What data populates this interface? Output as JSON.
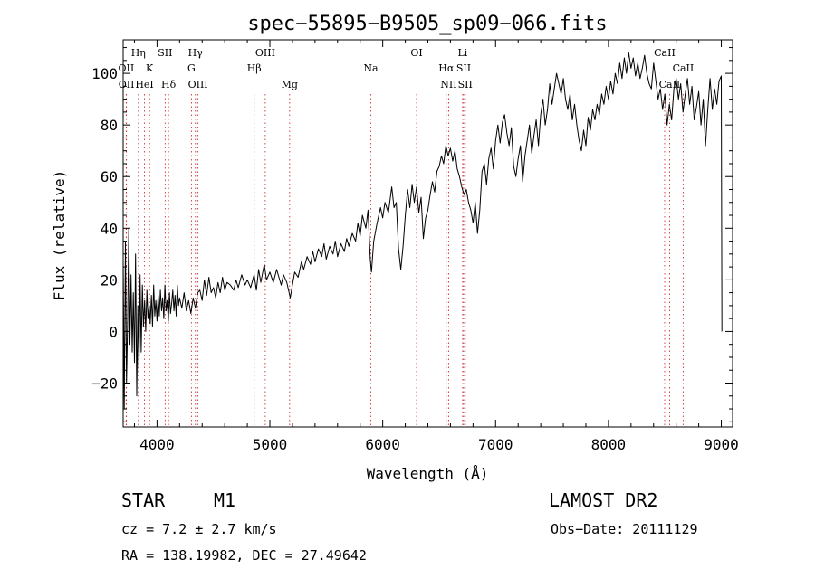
{
  "chart_data": {
    "type": "line",
    "title": "spec−55895−B9505_sp09−066.fits",
    "xlabel": "Wavelength (Å)",
    "ylabel": "Flux (relative)",
    "xlim": [
      3700,
      9100
    ],
    "ylim": [
      -37,
      113
    ],
    "xticks": [
      4000,
      5000,
      6000,
      7000,
      8000,
      9000
    ],
    "yticks": [
      -20,
      0,
      20,
      40,
      60,
      80,
      100
    ],
    "grid": false,
    "series": [
      {
        "name": "",
        "points": [
          [
            3700,
            28
          ],
          [
            3710,
            -30
          ],
          [
            3720,
            35
          ],
          [
            3730,
            -20
          ],
          [
            3740,
            5
          ],
          [
            3750,
            40
          ],
          [
            3760,
            -5
          ],
          [
            3770,
            22
          ],
          [
            3780,
            -8
          ],
          [
            3790,
            15
          ],
          [
            3800,
            -12
          ],
          [
            3810,
            30
          ],
          [
            3820,
            -25
          ],
          [
            3830,
            10
          ],
          [
            3840,
            -15
          ],
          [
            3850,
            22
          ],
          [
            3860,
            -8
          ],
          [
            3870,
            18
          ],
          [
            3880,
            2
          ],
          [
            3890,
            12
          ],
          [
            3900,
            0
          ],
          [
            3910,
            16
          ],
          [
            3920,
            5
          ],
          [
            3930,
            10
          ],
          [
            3940,
            3
          ],
          [
            3950,
            14
          ],
          [
            3960,
            2
          ],
          [
            3970,
            18
          ],
          [
            3980,
            6
          ],
          [
            3990,
            12
          ],
          [
            4000,
            4
          ],
          [
            4010,
            14
          ],
          [
            4020,
            6
          ],
          [
            4030,
            16
          ],
          [
            4040,
            8
          ],
          [
            4050,
            13
          ],
          [
            4060,
            5
          ],
          [
            4070,
            18
          ],
          [
            4080,
            8
          ],
          [
            4090,
            12
          ],
          [
            4100,
            4
          ],
          [
            4110,
            15
          ],
          [
            4120,
            7
          ],
          [
            4130,
            11
          ],
          [
            4140,
            16
          ],
          [
            4150,
            8
          ],
          [
            4160,
            14
          ],
          [
            4170,
            6
          ],
          [
            4180,
            18
          ],
          [
            4190,
            10
          ],
          [
            4200,
            13
          ],
          [
            4220,
            9
          ],
          [
            4240,
            15
          ],
          [
            4260,
            8
          ],
          [
            4280,
            12
          ],
          [
            4300,
            7
          ],
          [
            4320,
            13
          ],
          [
            4340,
            9
          ],
          [
            4360,
            15
          ],
          [
            4380,
            16
          ],
          [
            4400,
            12
          ],
          [
            4420,
            20
          ],
          [
            4440,
            14
          ],
          [
            4460,
            21
          ],
          [
            4480,
            15
          ],
          [
            4500,
            17
          ],
          [
            4520,
            13
          ],
          [
            4540,
            19
          ],
          [
            4560,
            15
          ],
          [
            4580,
            21
          ],
          [
            4600,
            16
          ],
          [
            4620,
            19
          ],
          [
            4650,
            18
          ],
          [
            4680,
            16
          ],
          [
            4700,
            20
          ],
          [
            4720,
            17
          ],
          [
            4750,
            22
          ],
          [
            4780,
            18
          ],
          [
            4800,
            20
          ],
          [
            4830,
            17
          ],
          [
            4860,
            22
          ],
          [
            4880,
            16
          ],
          [
            4900,
            24
          ],
          [
            4920,
            19
          ],
          [
            4950,
            26
          ],
          [
            4970,
            20
          ],
          [
            5000,
            23
          ],
          [
            5030,
            19
          ],
          [
            5060,
            24
          ],
          [
            5080,
            21
          ],
          [
            5100,
            18
          ],
          [
            5120,
            22
          ],
          [
            5150,
            19
          ],
          [
            5180,
            13
          ],
          [
            5200,
            18
          ],
          [
            5220,
            23
          ],
          [
            5250,
            21
          ],
          [
            5280,
            27
          ],
          [
            5300,
            24
          ],
          [
            5330,
            29
          ],
          [
            5360,
            26
          ],
          [
            5380,
            31
          ],
          [
            5400,
            27
          ],
          [
            5430,
            32
          ],
          [
            5460,
            29
          ],
          [
            5480,
            34
          ],
          [
            5500,
            28
          ],
          [
            5530,
            33
          ],
          [
            5560,
            30
          ],
          [
            5580,
            35
          ],
          [
            5600,
            29
          ],
          [
            5630,
            34
          ],
          [
            5660,
            31
          ],
          [
            5680,
            36
          ],
          [
            5700,
            33
          ],
          [
            5730,
            38
          ],
          [
            5760,
            35
          ],
          [
            5780,
            42
          ],
          [
            5800,
            37
          ],
          [
            5820,
            45
          ],
          [
            5850,
            40
          ],
          [
            5870,
            47
          ],
          [
            5890,
            28
          ],
          [
            5900,
            23
          ],
          [
            5920,
            35
          ],
          [
            5950,
            42
          ],
          [
            5980,
            48
          ],
          [
            6000,
            44
          ],
          [
            6020,
            50
          ],
          [
            6050,
            46
          ],
          [
            6080,
            56
          ],
          [
            6100,
            48
          ],
          [
            6120,
            50
          ],
          [
            6140,
            32
          ],
          [
            6160,
            24
          ],
          [
            6180,
            33
          ],
          [
            6200,
            45
          ],
          [
            6220,
            55
          ],
          [
            6240,
            48
          ],
          [
            6260,
            57
          ],
          [
            6280,
            50
          ],
          [
            6300,
            56
          ],
          [
            6320,
            46
          ],
          [
            6340,
            52
          ],
          [
            6360,
            36
          ],
          [
            6380,
            44
          ],
          [
            6400,
            47
          ],
          [
            6420,
            53
          ],
          [
            6440,
            58
          ],
          [
            6460,
            54
          ],
          [
            6480,
            62
          ],
          [
            6500,
            64
          ],
          [
            6520,
            68
          ],
          [
            6540,
            65
          ],
          [
            6560,
            72
          ],
          [
            6580,
            68
          ],
          [
            6600,
            71
          ],
          [
            6620,
            66
          ],
          [
            6640,
            70
          ],
          [
            6660,
            63
          ],
          [
            6680,
            60
          ],
          [
            6700,
            56
          ],
          [
            6720,
            53
          ],
          [
            6740,
            55
          ],
          [
            6760,
            50
          ],
          [
            6780,
            47
          ],
          [
            6800,
            42
          ],
          [
            6820,
            50
          ],
          [
            6840,
            38
          ],
          [
            6860,
            47
          ],
          [
            6880,
            62
          ],
          [
            6900,
            65
          ],
          [
            6920,
            57
          ],
          [
            6940,
            67
          ],
          [
            6960,
            71
          ],
          [
            6980,
            63
          ],
          [
            7000,
            74
          ],
          [
            7020,
            80
          ],
          [
            7040,
            73
          ],
          [
            7060,
            81
          ],
          [
            7080,
            84
          ],
          [
            7100,
            77
          ],
          [
            7120,
            72
          ],
          [
            7140,
            79
          ],
          [
            7160,
            64
          ],
          [
            7180,
            60
          ],
          [
            7200,
            67
          ],
          [
            7220,
            72
          ],
          [
            7240,
            58
          ],
          [
            7260,
            68
          ],
          [
            7280,
            74
          ],
          [
            7300,
            80
          ],
          [
            7320,
            69
          ],
          [
            7340,
            76
          ],
          [
            7360,
            82
          ],
          [
            7380,
            72
          ],
          [
            7400,
            84
          ],
          [
            7420,
            90
          ],
          [
            7440,
            80
          ],
          [
            7460,
            86
          ],
          [
            7480,
            96
          ],
          [
            7500,
            88
          ],
          [
            7520,
            94
          ],
          [
            7540,
            100
          ],
          [
            7560,
            96
          ],
          [
            7580,
            92
          ],
          [
            7600,
            98
          ],
          [
            7620,
            90
          ],
          [
            7640,
            86
          ],
          [
            7660,
            92
          ],
          [
            7680,
            82
          ],
          [
            7700,
            88
          ],
          [
            7720,
            80
          ],
          [
            7740,
            74
          ],
          [
            7760,
            70
          ],
          [
            7780,
            78
          ],
          [
            7800,
            72
          ],
          [
            7820,
            83
          ],
          [
            7840,
            78
          ],
          [
            7860,
            86
          ],
          [
            7880,
            82
          ],
          [
            7900,
            88
          ],
          [
            7920,
            84
          ],
          [
            7940,
            92
          ],
          [
            7960,
            88
          ],
          [
            7980,
            95
          ],
          [
            8000,
            90
          ],
          [
            8020,
            97
          ],
          [
            8040,
            92
          ],
          [
            8060,
            100
          ],
          [
            8080,
            96
          ],
          [
            8100,
            104
          ],
          [
            8120,
            98
          ],
          [
            8140,
            106
          ],
          [
            8160,
            100
          ],
          [
            8180,
            108
          ],
          [
            8200,
            102
          ],
          [
            8220,
            106
          ],
          [
            8240,
            99
          ],
          [
            8260,
            104
          ],
          [
            8280,
            98
          ],
          [
            8300,
            102
          ],
          [
            8320,
            107
          ],
          [
            8340,
            100
          ],
          [
            8360,
            96
          ],
          [
            8380,
            94
          ],
          [
            8400,
            104
          ],
          [
            8420,
            97
          ],
          [
            8440,
            90
          ],
          [
            8460,
            94
          ],
          [
            8480,
            86
          ],
          [
            8500,
            92
          ],
          [
            8520,
            80
          ],
          [
            8540,
            88
          ],
          [
            8560,
            82
          ],
          [
            8580,
            94
          ],
          [
            8600,
            98
          ],
          [
            8620,
            90
          ],
          [
            8640,
            96
          ],
          [
            8660,
            85
          ],
          [
            8680,
            92
          ],
          [
            8700,
            98
          ],
          [
            8720,
            88
          ],
          [
            8740,
            95
          ],
          [
            8760,
            82
          ],
          [
            8780,
            87
          ],
          [
            8800,
            93
          ],
          [
            8820,
            80
          ],
          [
            8840,
            90
          ],
          [
            8860,
            72
          ],
          [
            8880,
            86
          ],
          [
            8900,
            98
          ],
          [
            8920,
            86
          ],
          [
            8940,
            94
          ],
          [
            8960,
            88
          ],
          [
            8980,
            97
          ],
          [
            9000,
            99
          ],
          [
            9005,
            0
          ]
        ]
      }
    ],
    "line_markers": [
      {
        "label": "OII",
        "wavelength": 3727,
        "row": 1
      },
      {
        "label": "OII",
        "wavelength": 3729,
        "row": 2
      },
      {
        "label": "Hη",
        "wavelength": 3835,
        "row": 0
      },
      {
        "label": "HeI",
        "wavelength": 3889,
        "row": 2
      },
      {
        "label": "K",
        "wavelength": 3934,
        "row": 1
      },
      {
        "label": "SII",
        "wavelength": 4072,
        "row": 0
      },
      {
        "label": "Hδ",
        "wavelength": 4102,
        "row": 2
      },
      {
        "label": "Hγ",
        "wavelength": 4340,
        "row": 0
      },
      {
        "label": "G",
        "wavelength": 4305,
        "row": 1
      },
      {
        "label": "OIII",
        "wavelength": 4363,
        "row": 2
      },
      {
        "label": "Hβ",
        "wavelength": 4861,
        "row": 1
      },
      {
        "label": "OIII",
        "wavelength": 4959,
        "row": 0
      },
      {
        "label": "Mg",
        "wavelength": 5175,
        "row": 2
      },
      {
        "label": "Na",
        "wavelength": 5894,
        "row": 1
      },
      {
        "label": "OI",
        "wavelength": 6300,
        "row": 0
      },
      {
        "label": "Hα",
        "wavelength": 6563,
        "row": 1
      },
      {
        "label": "NII",
        "wavelength": 6584,
        "row": 2
      },
      {
        "label": "Li",
        "wavelength": 6708,
        "row": 0
      },
      {
        "label": "SII",
        "wavelength": 6717,
        "row": 1
      },
      {
        "label": "SII",
        "wavelength": 6731,
        "row": 2
      },
      {
        "label": "CaII",
        "wavelength": 8498,
        "row": 0
      },
      {
        "label": "CaII",
        "wavelength": 8542,
        "row": 2
      },
      {
        "label": "CaII",
        "wavelength": 8662,
        "row": 1
      }
    ]
  },
  "info": {
    "object_class": "STAR",
    "subclass": "M1",
    "survey": "LAMOST DR2",
    "cz": "cz = 7.2 ± 2.7 km/s",
    "obs_date": "Obs−Date: 20111129",
    "radec": "RA = 138.19982, DEC =  27.49642"
  },
  "colors": {
    "line_marker": "#cc3333",
    "spectrum": "#000000"
  }
}
